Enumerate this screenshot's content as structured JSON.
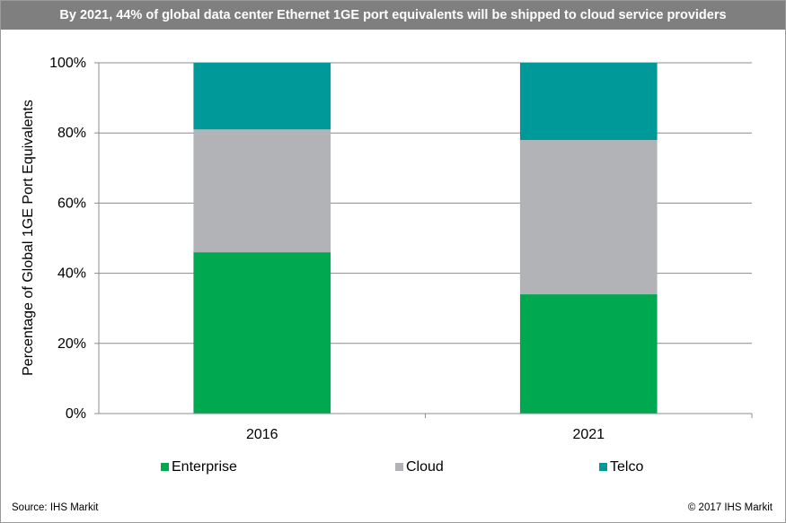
{
  "header": {
    "title": "By 2021, 44% of global data center Ethernet 1GE port equivalents will be shipped to cloud service providers"
  },
  "footer": {
    "source": "Source: IHS Markit",
    "copyright": "© 2017 IHS Markit"
  },
  "chart_data": {
    "type": "bar",
    "stacked": true,
    "categories": [
      "2016",
      "2021"
    ],
    "series": [
      {
        "name": "Enterprise",
        "values": [
          46,
          34
        ],
        "color": "#00a84f"
      },
      {
        "name": "Cloud",
        "values": [
          35,
          44
        ],
        "color": "#b1b3b6"
      },
      {
        "name": "Telco",
        "values": [
          19,
          22
        ],
        "color": "#009999"
      }
    ],
    "ylabel": "Percentage of Global 1GE Port Equivalents",
    "xlabel": "",
    "ylim": [
      0,
      100
    ],
    "yticks": [
      "0%",
      "20%",
      "40%",
      "60%",
      "80%",
      "100%"
    ],
    "grid": true,
    "legend": "bottom"
  }
}
